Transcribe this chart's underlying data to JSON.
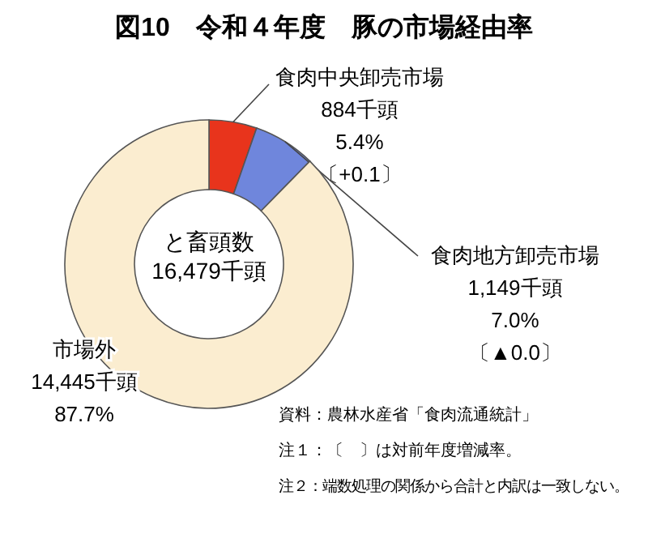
{
  "chart_data": {
    "type": "donut",
    "title": "図10　令和４年度　豚の市場経由率",
    "categories": [
      "食肉中央卸売市場",
      "食肉地方卸売市場",
      "市場外"
    ],
    "values": [
      884,
      1149,
      14445
    ],
    "value_labels": [
      "884千頭",
      "1,149千頭",
      "14,445千頭"
    ],
    "colors": [
      "#e8341c",
      "#6f86dc",
      "#fbedd0"
    ],
    "annotations": [
      "と畜頭数\n16,479千頭",
      {
        "text": "5.4%",
        "x": "食肉中央卸売市場"
      },
      {
        "text": "〔+0.1〕",
        "x": "食肉中央卸売市場"
      },
      {
        "text": "7.0%",
        "x": "食肉地方卸売市場"
      },
      {
        "text": "〔▲0.0〕",
        "x": "食肉地方卸売市場"
      },
      {
        "text": "87.7%",
        "x": "市場外"
      },
      "資料：農林水産省「食肉流通統計」",
      "注１：〔　〕は対前年度増減率。",
      "注２：端数処理の関係から合計と内訳は一致しない。"
    ]
  }
}
